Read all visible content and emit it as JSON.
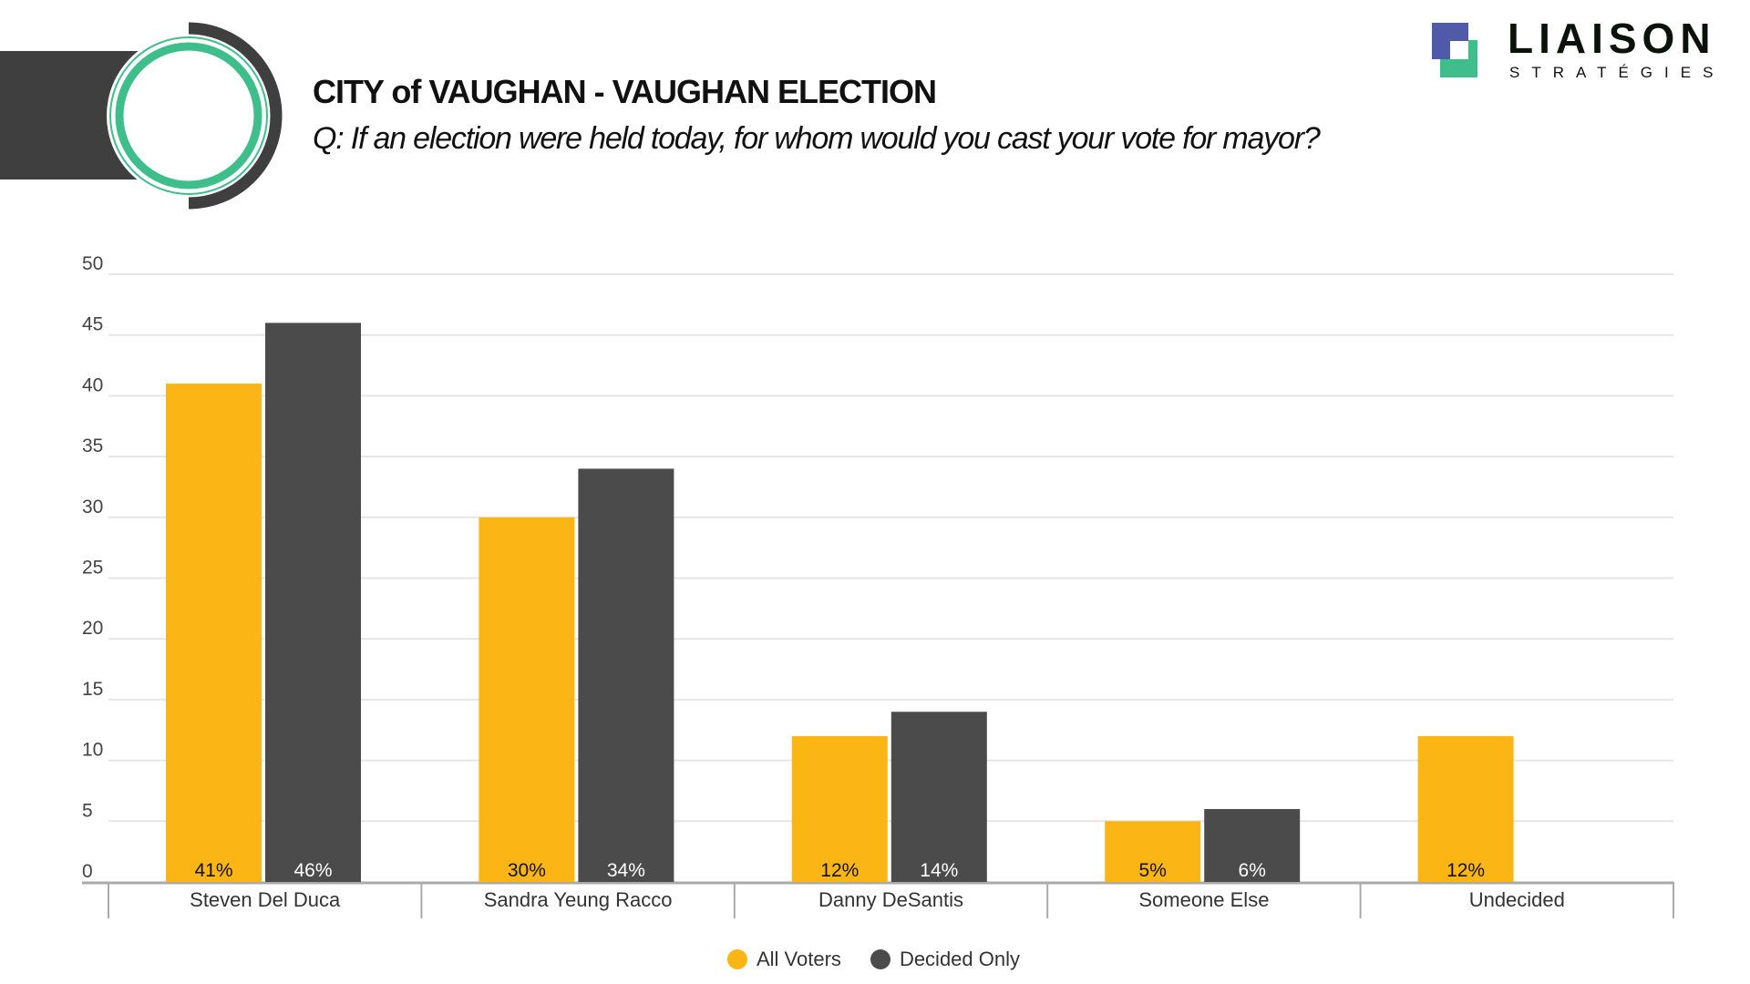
{
  "header": {
    "title": "CITY of VAUGHAN - VAUGHAN ELECTION",
    "subtitle": "Q: If an election were held today, for whom would you cast your vote for mayor?"
  },
  "logo": {
    "name": "LIAISON",
    "tagline": "STRATÉGIES",
    "colors": {
      "blue": "#4F5AA8",
      "green": "#3DBE8B"
    }
  },
  "chart_data": {
    "type": "bar",
    "categories": [
      "Steven Del Duca",
      "Sandra Yeung Racco",
      "Danny DeSantis",
      "Someone Else",
      "Undecided"
    ],
    "series": [
      {
        "name": "All Voters",
        "color": "#FBB514",
        "values": [
          41,
          30,
          12,
          5,
          12
        ],
        "labels": [
          "41%",
          "30%",
          "12%",
          "5%",
          "12%"
        ]
      },
      {
        "name": "Decided Only",
        "color": "#4B4B4B",
        "values": [
          46,
          34,
          14,
          6,
          null
        ],
        "labels": [
          "46%",
          "34%",
          "14%",
          "6%",
          null
        ]
      }
    ],
    "ylim": [
      0,
      50
    ],
    "yticks": [
      0,
      5,
      10,
      15,
      20,
      25,
      30,
      35,
      40,
      45,
      50
    ],
    "grid": true,
    "legend": "bottom-center"
  }
}
